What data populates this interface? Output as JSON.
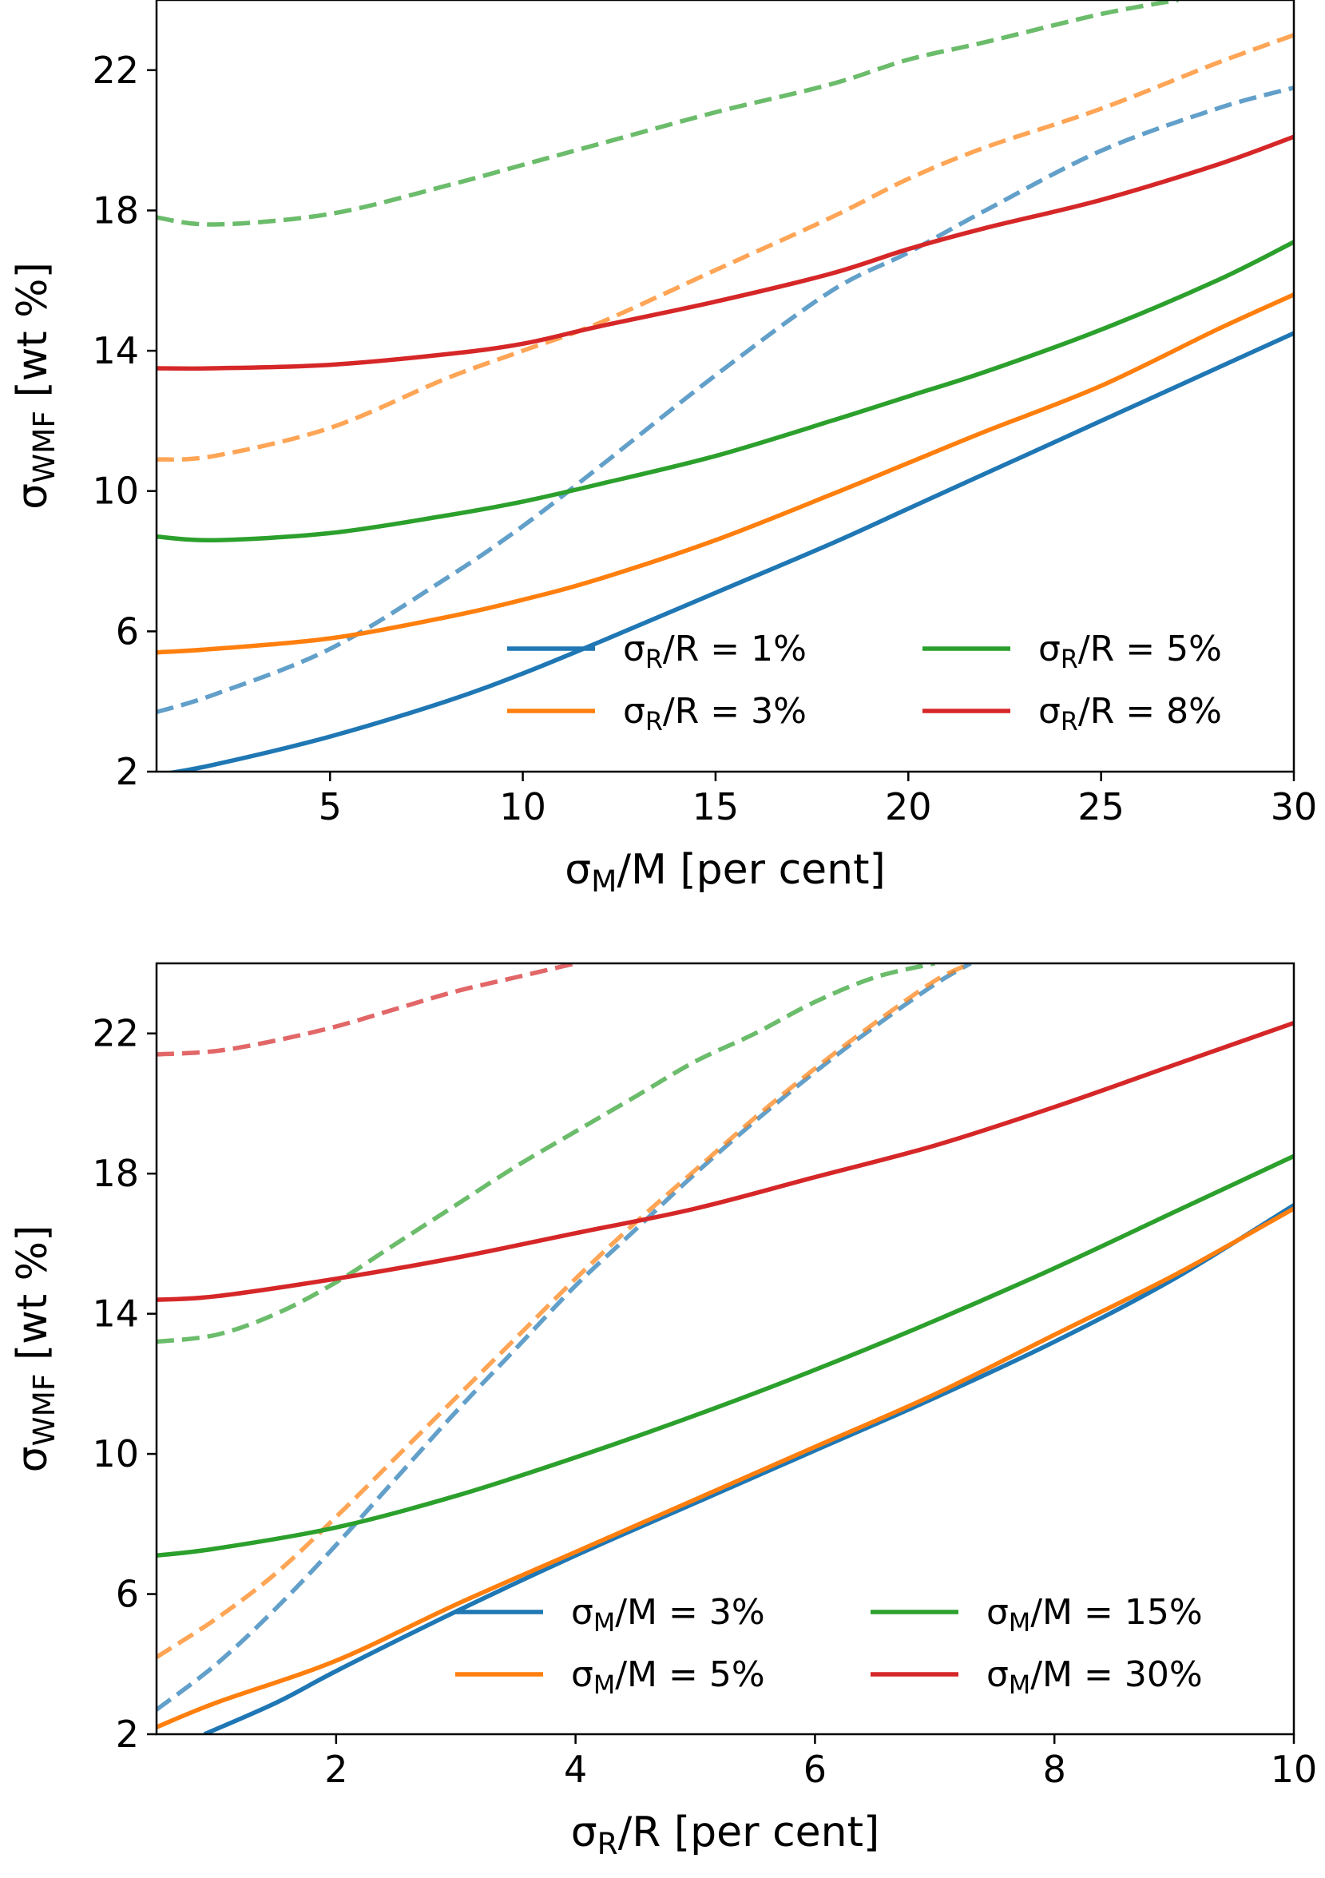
{
  "chart_data": [
    {
      "type": "line",
      "xlabel": "σM/M [per cent]",
      "ylabel": "σWMF [wt %]",
      "xlim": [
        0.5,
        30
      ],
      "ylim": [
        2,
        24
      ],
      "xticks": [
        5,
        10,
        15,
        20,
        25,
        30
      ],
      "yticks": [
        2,
        6,
        10,
        14,
        18,
        22
      ],
      "legend": {
        "placement": "lower-right",
        "columns": 2
      },
      "line_styles": {
        "solid": "model",
        "dashed": "comparison"
      },
      "series": [
        {
          "name": "σR/R = 1%",
          "legend_main": "σ",
          "legend_sub": "R",
          "legend_rest": "/R = 1%",
          "color": "#1f77b4",
          "style": "solid",
          "x": [
            0.5,
            2,
            5,
            8,
            10,
            12,
            15,
            18,
            20,
            22,
            25,
            28,
            30
          ],
          "y": [
            1.9,
            2.2,
            3.0,
            4.0,
            4.8,
            5.7,
            7.1,
            8.5,
            9.5,
            10.5,
            12.0,
            13.5,
            14.5
          ]
        },
        {
          "name": "σR/R = 1%",
          "color": "#1f77b4",
          "style": "dashed",
          "x": [
            0.5,
            2,
            5,
            8,
            10,
            12,
            15,
            18,
            20,
            22,
            25,
            28,
            30
          ],
          "y": [
            3.7,
            4.2,
            5.5,
            7.5,
            9.0,
            10.7,
            13.3,
            15.7,
            16.8,
            18.0,
            19.7,
            20.9,
            21.5
          ]
        },
        {
          "name": "σR/R = 3%",
          "legend_main": "σ",
          "legend_sub": "R",
          "legend_rest": "/R = 3%",
          "color": "#ff7f0e",
          "style": "solid",
          "x": [
            0.5,
            2,
            5,
            8,
            10,
            12,
            15,
            18,
            20,
            22,
            25,
            28,
            30
          ],
          "y": [
            5.4,
            5.5,
            5.8,
            6.4,
            6.9,
            7.5,
            8.6,
            9.9,
            10.8,
            11.7,
            13.0,
            14.6,
            15.6
          ]
        },
        {
          "name": "σR/R = 3%",
          "color": "#ff7f0e",
          "style": "dashed",
          "x": [
            0.5,
            2,
            5,
            8,
            10,
            12,
            15,
            18,
            20,
            22,
            25,
            28,
            30
          ],
          "y": [
            10.9,
            11.0,
            11.8,
            13.2,
            14.0,
            14.8,
            16.3,
            17.8,
            18.9,
            19.8,
            20.9,
            22.2,
            23.0
          ]
        },
        {
          "name": "σR/R = 5%",
          "legend_main": "σ",
          "legend_sub": "R",
          "legend_rest": "/R = 5%",
          "color": "#2ca02c",
          "style": "solid",
          "x": [
            0.5,
            2,
            5,
            8,
            10,
            12,
            15,
            18,
            20,
            22,
            25,
            28,
            30
          ],
          "y": [
            8.7,
            8.6,
            8.8,
            9.3,
            9.7,
            10.2,
            11.0,
            12.0,
            12.7,
            13.4,
            14.6,
            16.0,
            17.1
          ]
        },
        {
          "name": "σR/R = 5%",
          "color": "#2ca02c",
          "style": "dashed",
          "x": [
            0.5,
            2,
            5,
            8,
            10,
            12,
            15,
            18,
            20,
            22,
            25,
            27
          ],
          "y": [
            17.8,
            17.6,
            17.9,
            18.7,
            19.3,
            19.9,
            20.8,
            21.6,
            22.3,
            22.8,
            23.6,
            24.0
          ]
        },
        {
          "name": "σR/R = 8%",
          "legend_main": "σ",
          "legend_sub": "R",
          "legend_rest": "/R = 8%",
          "color": "#d62728",
          "style": "solid",
          "x": [
            0.5,
            2,
            5,
            8,
            10,
            12,
            15,
            18,
            20,
            22,
            25,
            28,
            30
          ],
          "y": [
            13.5,
            13.5,
            13.6,
            13.9,
            14.2,
            14.7,
            15.4,
            16.2,
            16.9,
            17.5,
            18.3,
            19.3,
            20.1
          ]
        }
      ]
    },
    {
      "type": "line",
      "xlabel": "σR/R [per cent]",
      "ylabel": "σWMF [wt %]",
      "xlim": [
        0.5,
        10
      ],
      "ylim": [
        2,
        24
      ],
      "xticks": [
        2,
        4,
        6,
        8,
        10
      ],
      "yticks": [
        2,
        6,
        10,
        14,
        18,
        22
      ],
      "legend": {
        "placement": "lower-right",
        "columns": 2
      },
      "line_styles": {
        "solid": "model",
        "dashed": "comparison"
      },
      "series": [
        {
          "name": "σM/M = 3%",
          "legend_main": "σ",
          "legend_sub": "M",
          "legend_rest": "/M = 3%",
          "color": "#1f77b4",
          "style": "solid",
          "x": [
            0.9,
            1.5,
            2,
            3,
            4,
            5,
            6,
            7,
            8,
            9,
            10
          ],
          "y": [
            2.0,
            2.9,
            3.8,
            5.5,
            7.1,
            8.6,
            10.1,
            11.6,
            13.2,
            15.0,
            17.1
          ]
        },
        {
          "name": "σM/M = 3%",
          "color": "#1f77b4",
          "style": "dashed",
          "x": [
            0.5,
            1,
            1.5,
            2,
            2.5,
            3,
            3.5,
            4,
            4.5,
            5,
            5.5,
            6,
            6.5,
            7,
            7.3
          ],
          "y": [
            2.7,
            4.0,
            5.6,
            7.4,
            9.3,
            11.2,
            13.0,
            14.8,
            16.4,
            18.0,
            19.5,
            20.9,
            22.2,
            23.4,
            24.0
          ]
        },
        {
          "name": "σM/M = 5%",
          "legend_main": "σ",
          "legend_sub": "M",
          "legend_rest": "/M = 5%",
          "color": "#ff7f0e",
          "style": "solid",
          "x": [
            0.5,
            1,
            2,
            3,
            4,
            5,
            6,
            7,
            8,
            9,
            10
          ],
          "y": [
            2.2,
            2.9,
            4.1,
            5.7,
            7.2,
            8.7,
            10.2,
            11.7,
            13.4,
            15.1,
            17.0
          ]
        },
        {
          "name": "σM/M = 5%",
          "color": "#ff7f0e",
          "style": "dashed",
          "x": [
            0.5,
            1,
            1.5,
            2,
            2.5,
            3,
            3.5,
            4,
            4.5,
            5,
            5.5,
            6,
            6.5,
            7,
            7.3
          ],
          "y": [
            4.2,
            5.3,
            6.6,
            8.2,
            9.9,
            11.6,
            13.3,
            15.0,
            16.6,
            18.1,
            19.6,
            21.0,
            22.3,
            23.5,
            24.0
          ]
        },
        {
          "name": "σM/M = 15%",
          "legend_main": "σ",
          "legend_sub": "M",
          "legend_rest": "/M = 15%",
          "color": "#2ca02c",
          "style": "solid",
          "x": [
            0.5,
            1,
            2,
            3,
            4,
            5,
            6,
            7,
            8,
            9,
            10
          ],
          "y": [
            7.1,
            7.3,
            7.9,
            8.8,
            9.9,
            11.1,
            12.4,
            13.8,
            15.3,
            16.9,
            18.5
          ]
        },
        {
          "name": "σM/M = 15%",
          "color": "#2ca02c",
          "style": "dashed",
          "x": [
            0.5,
            1,
            1.5,
            2,
            2.5,
            3,
            3.5,
            4,
            4.5,
            5,
            5.5,
            6,
            6.5,
            7
          ],
          "y": [
            13.2,
            13.4,
            14.0,
            14.9,
            16.0,
            17.1,
            18.2,
            19.2,
            20.2,
            21.2,
            22.0,
            22.9,
            23.6,
            24.0
          ]
        },
        {
          "name": "σM/M = 30%",
          "legend_main": "σ",
          "legend_sub": "M",
          "legend_rest": "/M = 30%",
          "color": "#d62728",
          "style": "solid",
          "x": [
            0.5,
            1,
            2,
            3,
            4,
            5,
            6,
            7,
            8,
            9,
            10
          ],
          "y": [
            14.4,
            14.5,
            15.0,
            15.6,
            16.3,
            17.0,
            17.9,
            18.8,
            19.9,
            21.1,
            22.3
          ]
        },
        {
          "name": "σM/M = 30%",
          "color": "#d62728",
          "style": "dashed",
          "x": [
            0.5,
            1,
            1.5,
            2,
            2.5,
            3,
            3.5,
            4
          ],
          "y": [
            21.4,
            21.5,
            21.8,
            22.2,
            22.7,
            23.2,
            23.6,
            24.0
          ]
        }
      ]
    }
  ]
}
